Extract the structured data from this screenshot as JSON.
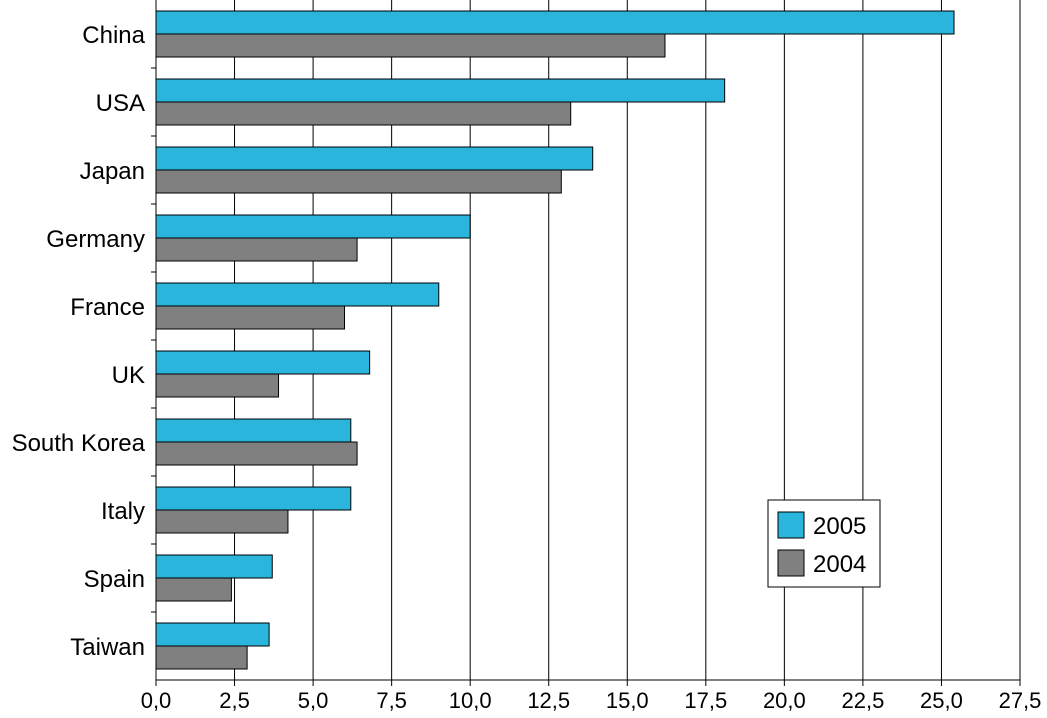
{
  "chart_data": {
    "type": "bar",
    "orientation": "horizontal",
    "title": "",
    "xlabel": "",
    "ylabel": "",
    "categories": [
      "China",
      "USA",
      "Japan",
      "Germany",
      "France",
      "UK",
      "South Korea",
      "Italy",
      "Spain",
      "Taiwan"
    ],
    "series": [
      {
        "name": "2005",
        "color": "#29b5dc",
        "values": [
          25.4,
          18.1,
          13.9,
          10.0,
          9.0,
          6.8,
          6.2,
          6.2,
          3.7,
          3.6
        ]
      },
      {
        "name": "2004",
        "color": "#808080",
        "values": [
          16.2,
          13.2,
          12.9,
          6.4,
          6.0,
          3.9,
          6.4,
          4.2,
          2.4,
          2.9
        ]
      }
    ],
    "xlim": [
      0,
      27.5
    ],
    "xticks": [
      "0,0",
      "2,5",
      "5,0",
      "7,5",
      "10,0",
      "12,5",
      "15,0",
      "17,5",
      "20,0",
      "22,5",
      "25,0",
      "27,5"
    ],
    "grid": true,
    "legend": {
      "position": "bottom-right",
      "entries": [
        "2005",
        "2004"
      ]
    }
  }
}
